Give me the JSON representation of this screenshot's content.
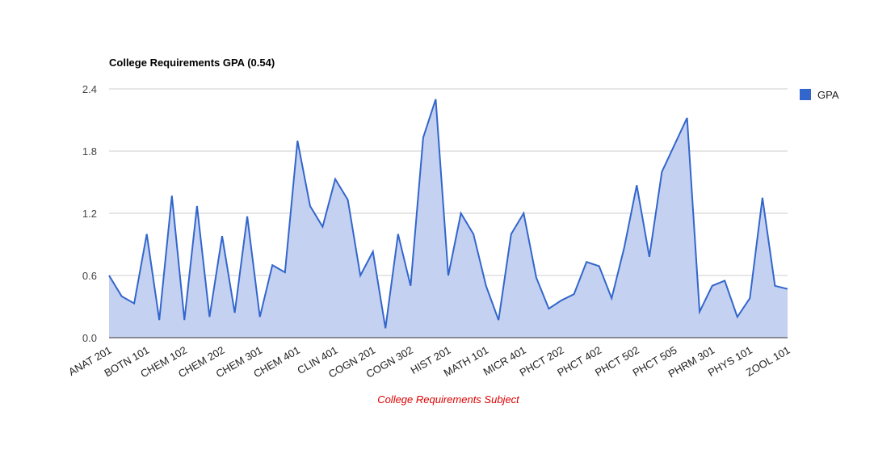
{
  "chart_data": {
    "type": "area",
    "title": "College Requirements GPA (0.54)",
    "xlabel": "College Requirements Subject",
    "ylabel": "",
    "ylim": [
      0,
      2.4
    ],
    "yticks": [
      "0.0",
      "0.6",
      "1.2",
      "1.8",
      "2.4"
    ],
    "grid": true,
    "legend_position": "right",
    "colors": {
      "line": "#3366cc",
      "fill": "#c4d1f0",
      "grid": "#cccccc",
      "baseline": "#333333",
      "xlabel": "#dd0000"
    },
    "x_tick_labels": [
      "ANAT 201",
      "BOTN 101",
      "CHEM 102",
      "CHEM 202",
      "CHEM 301",
      "CHEM 401",
      "CLIN 401",
      "COGN 201",
      "COGN 302",
      "HIST 201",
      "MATH 101",
      "MICR 401",
      "PHCT 202",
      "PHCT 402",
      "PHCT 502",
      "PHCT 505",
      "PHRM 301",
      "PHYS 101",
      "ZOOL 101"
    ],
    "series": [
      {
        "name": "GPA",
        "values": [
          0.6,
          0.4,
          0.33,
          1.0,
          0.17,
          1.37,
          0.17,
          1.27,
          0.2,
          0.98,
          0.24,
          1.17,
          0.2,
          0.7,
          0.63,
          1.9,
          1.27,
          1.07,
          1.53,
          1.33,
          0.6,
          0.83,
          0.09,
          1.0,
          0.5,
          1.93,
          2.3,
          0.6,
          1.2,
          1.0,
          0.5,
          0.17,
          1.0,
          1.2,
          0.58,
          0.28,
          0.36,
          0.42,
          0.73,
          0.69,
          0.38,
          0.87,
          1.47,
          0.78,
          1.6,
          1.86,
          2.12,
          0.25,
          0.5,
          0.55,
          0.2,
          0.38,
          1.35,
          0.5,
          0.47
        ]
      }
    ]
  }
}
